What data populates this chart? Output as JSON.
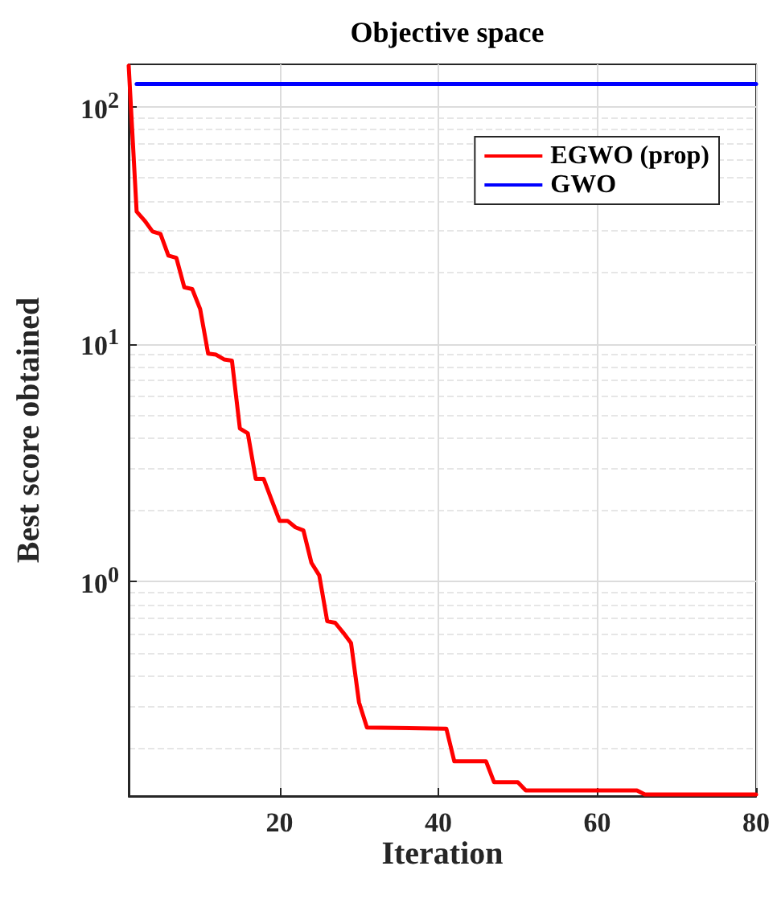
{
  "chart_data": {
    "type": "line",
    "title": "Objective space",
    "xlabel": "Iteration",
    "ylabel": "Best score obtained",
    "series": [
      {
        "name": "EGWO (prop)",
        "color": "#ff0000",
        "x": [
          1,
          2,
          3,
          4,
          5,
          6,
          7,
          8,
          9,
          10,
          11,
          12,
          13,
          14,
          15,
          16,
          17,
          18,
          19,
          20,
          21,
          22,
          23,
          24,
          25,
          26,
          27,
          28,
          29,
          30,
          31,
          41,
          42,
          46,
          47,
          50,
          51,
          65,
          66,
          80
        ],
        "values": [
          148,
          36,
          33,
          29.7,
          29,
          23.5,
          23,
          17.3,
          17,
          14,
          9.1,
          9.0,
          8.6,
          8.5,
          4.4,
          4.2,
          2.7,
          2.7,
          2.2,
          1.8,
          1.8,
          1.69,
          1.64,
          1.2,
          1.06,
          0.68,
          0.67,
          0.61,
          0.55,
          0.31,
          0.243,
          0.24,
          0.175,
          0.175,
          0.143,
          0.143,
          0.132,
          0.132,
          0.127,
          0.127
        ]
      },
      {
        "name": "GWO",
        "color": "#0000ff",
        "x": [
          2,
          80
        ],
        "values": [
          124,
          124
        ]
      }
    ],
    "xlim": [
      1,
      80
    ],
    "xticks": [
      20,
      40,
      60,
      80
    ],
    "ylim": [
      0.125,
      150
    ],
    "yticks": [
      {
        "value": 1,
        "label": "10$^{0}$"
      },
      {
        "value": 10,
        "label": "10$^{1}$"
      },
      {
        "value": 100,
        "label": "10$^{2}$"
      }
    ],
    "log": "y",
    "grid": true,
    "legend": "top right",
    "marker": "none",
    "line_style": "solid"
  }
}
